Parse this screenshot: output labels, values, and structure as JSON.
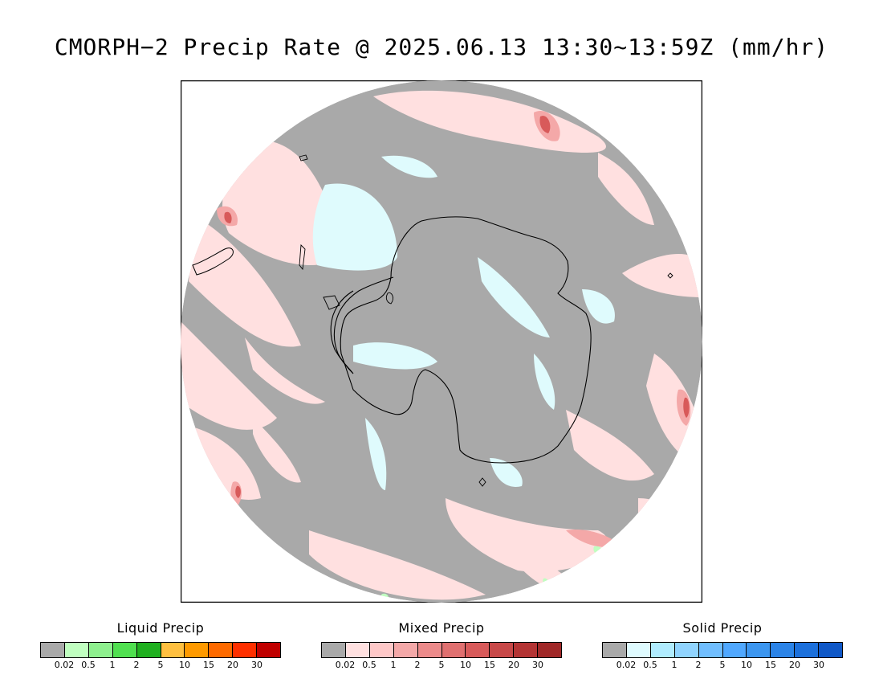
{
  "title": "CMORPH−2 Precip Rate @ 2025.06.13 13:30~13:59Z (mm/hr)",
  "map": {
    "projection": "south-polar-stereographic",
    "colors": {
      "no_precip": "#a9a9a9",
      "liquid_light": "#c0ffc0",
      "mixed_light": "#ffe0e0",
      "mixed_mid": "#f4a8a8",
      "mixed_heavy": "#d85a5a",
      "solid_light": "#dffbfd",
      "coastline": "#000000",
      "frame": "#000000"
    }
  },
  "legends": [
    {
      "title": "Liquid Precip",
      "ticks": [
        "0.02",
        "0.5",
        "1",
        "2",
        "5",
        "10",
        "15",
        "20",
        "30"
      ],
      "colors": [
        "#a9a9a9",
        "#c0ffc0",
        "#8ef08e",
        "#50e050",
        "#20b020",
        "#ffc040",
        "#ff9a00",
        "#ff6a00",
        "#ff3000",
        "#c00000"
      ]
    },
    {
      "title": "Mixed Precip",
      "ticks": [
        "0.02",
        "0.5",
        "1",
        "2",
        "5",
        "10",
        "15",
        "20",
        "30"
      ],
      "colors": [
        "#a9a9a9",
        "#ffe0e0",
        "#ffc8c8",
        "#f4a8a8",
        "#ec8a8a",
        "#e07070",
        "#d85a5a",
        "#c84848",
        "#b43434",
        "#a02828"
      ]
    },
    {
      "title": "Solid Precip",
      "ticks": [
        "0.02",
        "0.5",
        "1",
        "2",
        "5",
        "10",
        "15",
        "20",
        "30"
      ],
      "colors": [
        "#a9a9a9",
        "#dffbff",
        "#b0ecff",
        "#90d4ff",
        "#70beff",
        "#50a8ff",
        "#3c96f0",
        "#2c84e8",
        "#1c70dc",
        "#1058c8"
      ]
    }
  ]
}
